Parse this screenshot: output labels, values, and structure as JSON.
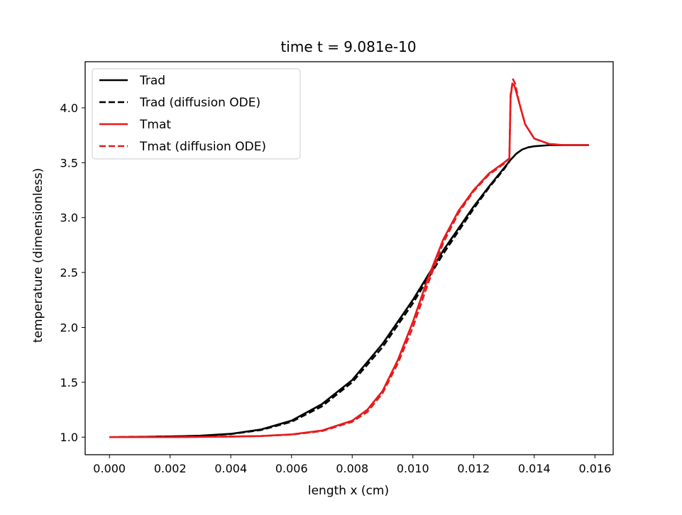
{
  "chart_data": {
    "type": "line",
    "title": "time t = 9.081e-10",
    "xlabel": "length x (cm)",
    "ylabel": "temperature (dimensionless)",
    "xlim": [
      -0.0008,
      0.0166
    ],
    "ylim": [
      0.84,
      4.42
    ],
    "xticks": [
      0.0,
      0.002,
      0.004,
      0.006,
      0.008,
      0.01,
      0.012,
      0.014,
      0.016
    ],
    "xtick_labels": [
      "0.000",
      "0.002",
      "0.004",
      "0.006",
      "0.008",
      "0.010",
      "0.012",
      "0.014",
      "0.016"
    ],
    "yticks": [
      1.0,
      1.5,
      2.0,
      2.5,
      3.0,
      3.5,
      4.0
    ],
    "ytick_labels": [
      "1.0",
      "1.5",
      "2.0",
      "2.5",
      "3.0",
      "3.5",
      "4.0"
    ],
    "grid": false,
    "legend": "top-left",
    "series": [
      {
        "name": "Trad",
        "color": "#000000",
        "dash": "solid",
        "x": [
          0.0,
          0.001,
          0.002,
          0.003,
          0.004,
          0.005,
          0.006,
          0.007,
          0.008,
          0.009,
          0.01,
          0.011,
          0.012,
          0.0125,
          0.013,
          0.0132,
          0.0134,
          0.0136,
          0.0138,
          0.014,
          0.0145,
          0.015,
          0.0158
        ],
        "y": [
          1.0,
          1.002,
          1.006,
          1.013,
          1.03,
          1.07,
          1.15,
          1.3,
          1.52,
          1.85,
          2.25,
          2.7,
          3.1,
          3.28,
          3.45,
          3.52,
          3.58,
          3.62,
          3.64,
          3.65,
          3.66,
          3.66,
          3.66
        ]
      },
      {
        "name": "Trad (diffusion ODE)",
        "color": "#000000",
        "dash": "dashed",
        "x": [
          0.0,
          0.001,
          0.002,
          0.003,
          0.004,
          0.005,
          0.006,
          0.007,
          0.008,
          0.009,
          0.01,
          0.011,
          0.012,
          0.0125,
          0.013,
          0.0132
        ],
        "y": [
          1.0,
          1.002,
          1.006,
          1.012,
          1.028,
          1.065,
          1.14,
          1.28,
          1.5,
          1.82,
          2.22,
          2.67,
          3.08,
          3.27,
          3.44,
          3.52
        ]
      },
      {
        "name": "Tmat",
        "color": "#e8191c",
        "dash": "solid",
        "x": [
          0.0,
          0.002,
          0.004,
          0.005,
          0.006,
          0.007,
          0.008,
          0.0085,
          0.009,
          0.0095,
          0.01,
          0.0105,
          0.011,
          0.0115,
          0.012,
          0.0125,
          0.013,
          0.01318,
          0.01322,
          0.01328,
          0.01335,
          0.0135,
          0.0137,
          0.014,
          0.0145,
          0.015,
          0.0158
        ],
        "y": [
          1.0,
          1.0,
          1.005,
          1.01,
          1.025,
          1.06,
          1.15,
          1.25,
          1.42,
          1.7,
          2.05,
          2.45,
          2.8,
          3.06,
          3.25,
          3.4,
          3.5,
          3.54,
          4.1,
          4.22,
          4.2,
          4.05,
          3.85,
          3.72,
          3.67,
          3.66,
          3.66
        ]
      },
      {
        "name": "Tmat (diffusion ODE)",
        "color": "#e8191c",
        "dash": "dashed",
        "x": [
          0.0,
          0.002,
          0.004,
          0.005,
          0.006,
          0.007,
          0.008,
          0.0085,
          0.009,
          0.0095,
          0.01,
          0.0105,
          0.011,
          0.0115,
          0.012,
          0.0125,
          0.013,
          0.01318,
          0.01322,
          0.0133,
          0.01337,
          0.0135,
          0.0137,
          0.014,
          0.0145,
          0.015
        ],
        "y": [
          1.0,
          1.0,
          1.005,
          1.01,
          1.023,
          1.055,
          1.14,
          1.23,
          1.4,
          1.67,
          2.0,
          2.4,
          2.77,
          3.04,
          3.24,
          3.39,
          3.49,
          3.54,
          4.12,
          4.26,
          4.22,
          4.05,
          3.85,
          3.72,
          3.67,
          3.66
        ]
      }
    ]
  }
}
